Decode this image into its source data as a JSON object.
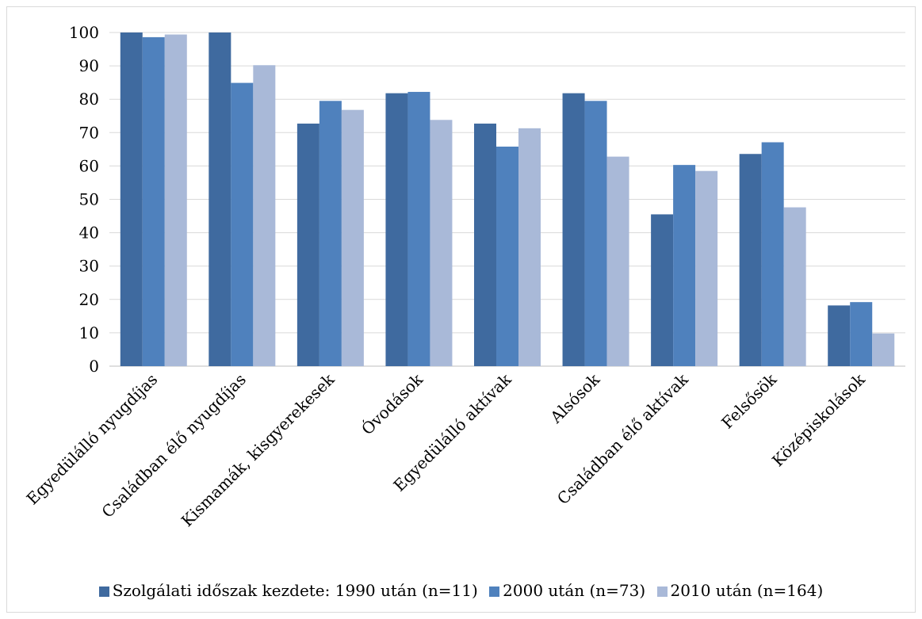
{
  "chart_data": {
    "type": "bar",
    "categories": [
      "Egyedülálló nyugdíjas",
      "Családban élő nyugdíjas",
      "Kismamák, kisgyerekesek",
      "Óvodások",
      "Egyedülálló aktívak",
      "Alsósok",
      "Családban élő aktívak",
      "Felsősök",
      "Középiskolások"
    ],
    "series": [
      {
        "name": "Szolgálati időszak kezdete: 1990 után (n=11)",
        "color": "#3f6a9f",
        "values": [
          100,
          100,
          72.7,
          81.8,
          72.7,
          81.8,
          45.5,
          63.6,
          18.2
        ]
      },
      {
        "name": "2000 után (n=73)",
        "color": "#4f81bd",
        "values": [
          98.6,
          84.9,
          79.5,
          82.2,
          65.8,
          79.5,
          60.3,
          67.1,
          19.2
        ]
      },
      {
        "name": "2010 után (n=164)",
        "color": "#a9b9d8",
        "values": [
          99.4,
          90.2,
          76.8,
          73.8,
          71.3,
          62.8,
          58.5,
          47.6,
          9.8
        ]
      }
    ],
    "yticks": [
      0,
      10,
      20,
      30,
      40,
      50,
      60,
      70,
      80,
      90,
      100
    ],
    "ylim": [
      0,
      100
    ],
    "grid": true,
    "legend_position": "bottom"
  }
}
